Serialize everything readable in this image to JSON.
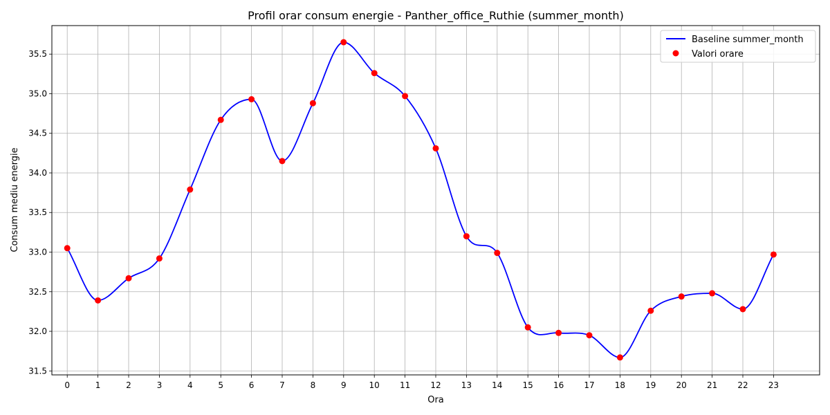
{
  "chart_data": {
    "type": "line",
    "title": "Profil orar consum energie - Panther_office_Ruthie (summer_month)",
    "xlabel": "Ora",
    "ylabel": "Consum mediu energie",
    "x": [
      0,
      1,
      2,
      3,
      4,
      5,
      6,
      7,
      8,
      9,
      10,
      11,
      12,
      13,
      14,
      15,
      16,
      17,
      18,
      19,
      20,
      21,
      22,
      23
    ],
    "xlim": [
      -0.5,
      24.5
    ],
    "ylim": [
      31.45,
      35.86
    ],
    "yticks": [
      31.5,
      32.0,
      32.5,
      33.0,
      33.5,
      34.0,
      34.5,
      35.0,
      35.5
    ],
    "grid": true,
    "legend_position": "top-right",
    "series": [
      {
        "name": "Baseline summer_month",
        "kind": "line",
        "color": "#0000ff",
        "values": [
          33.05,
          32.39,
          32.67,
          32.92,
          33.79,
          34.67,
          34.93,
          34.15,
          34.88,
          35.65,
          35.26,
          34.97,
          34.31,
          33.2,
          32.99,
          32.05,
          31.98,
          31.95,
          31.67,
          32.26,
          32.44,
          32.48,
          32.28,
          32.97
        ]
      },
      {
        "name": "Valori orare",
        "kind": "scatter",
        "color": "#ff0000",
        "values": [
          33.05,
          32.39,
          32.67,
          32.92,
          33.79,
          34.67,
          34.93,
          34.15,
          34.88,
          35.65,
          35.26,
          34.97,
          34.31,
          33.2,
          32.99,
          32.05,
          31.98,
          31.95,
          31.67,
          32.26,
          32.44,
          32.48,
          32.28,
          32.97
        ]
      }
    ]
  }
}
